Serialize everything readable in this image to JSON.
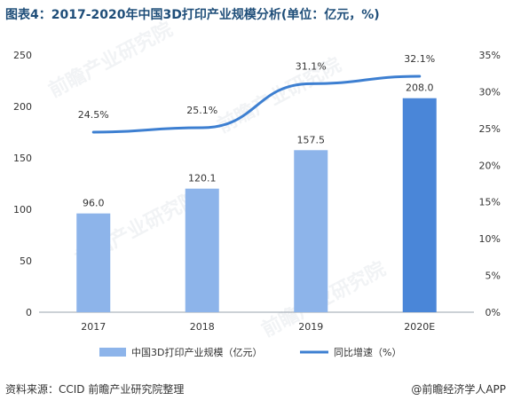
{
  "title": "图表4：2017-2020年中国3D打印产业规模分析(单位：亿元，%)",
  "source": "资料来源：CCID 前瞻产业研究院整理",
  "brand": "@前瞻经济学人APP",
  "watermark": "前瞻产业研究院",
  "colors": {
    "bar": "#8db4ea",
    "bar_last": "#4a86d8",
    "line": "#3d7fd1",
    "axis": "#9aa3ad",
    "text": "#333333"
  },
  "chart_data": {
    "type": "bar",
    "categories": [
      "2017",
      "2018",
      "2019",
      "2020E"
    ],
    "series": [
      {
        "name": "中国3D打印产业规模（亿元）",
        "type": "bar",
        "axis": "left",
        "values": [
          96.0,
          120.1,
          157.5,
          208.0
        ],
        "labels": [
          "96.0",
          "120.1",
          "157.5",
          "208.0"
        ]
      },
      {
        "name": "同比增速（%）",
        "type": "line",
        "axis": "right",
        "values": [
          24.5,
          25.1,
          31.1,
          32.1
        ],
        "labels": [
          "24.5%",
          "25.1%",
          "31.1%",
          "32.1%"
        ]
      }
    ],
    "left_axis": {
      "range": [
        0,
        250
      ],
      "ticks": [
        "0",
        "50",
        "100",
        "150",
        "200",
        "250"
      ]
    },
    "right_axis": {
      "range": [
        0,
        35
      ],
      "ticks": [
        "0%",
        "5%",
        "10%",
        "15%",
        "20%",
        "25%",
        "30%",
        "35%"
      ]
    },
    "grid": false,
    "legend_position": "bottom"
  }
}
